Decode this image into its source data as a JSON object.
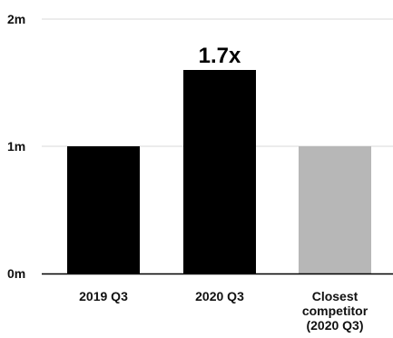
{
  "chart_data": {
    "type": "bar",
    "categories": [
      [
        "2019 Q3"
      ],
      [
        "2020 Q3"
      ],
      [
        "Closest",
        "competitor",
        "(2020 Q3)"
      ]
    ],
    "values": [
      1.0,
      1.6,
      1.0
    ],
    "bar_colors": [
      "#000000",
      "#000000",
      "#b7b7b7"
    ],
    "data_labels": [
      "",
      "1.7x",
      ""
    ],
    "ylim": [
      0,
      2
    ],
    "yticks": [
      {
        "value": 0,
        "label": "0m"
      },
      {
        "value": 1,
        "label": "1m"
      },
      {
        "value": 2,
        "label": "2m"
      }
    ],
    "grid": true,
    "grid_color": "#d9d9d9",
    "title": "",
    "xlabel": "",
    "ylabel": ""
  }
}
